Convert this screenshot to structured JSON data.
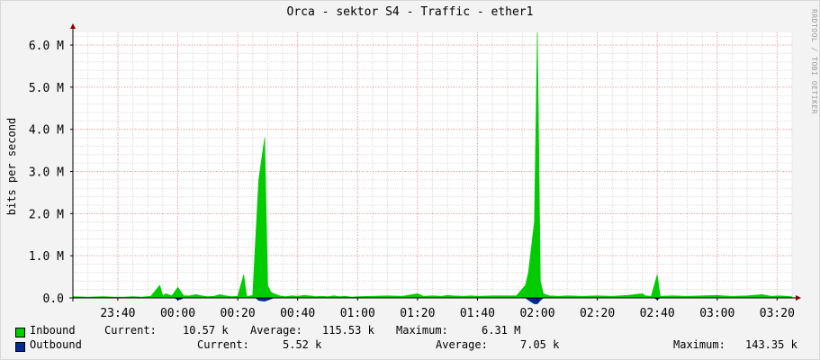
{
  "title": "Orca - sektor S4 - Traffic - ether1",
  "watermark": "RRDTOOL / TOBI OETIKER",
  "chart_data": {
    "type": "area",
    "ylabel": "bits per second",
    "ylim": [
      0,
      6.3
    ],
    "yticks": [
      0.0,
      1.0,
      2.0,
      3.0,
      4.0,
      5.0,
      6.0
    ],
    "ytick_labels": [
      "0.0",
      "1.0 M",
      "2.0 M",
      "3.0 M",
      "4.0 M",
      "5.0 M",
      "6.0 M"
    ],
    "xtick_labels": [
      "23:40",
      "00:00",
      "00:20",
      "00:40",
      "01:00",
      "01:20",
      "01:40",
      "02:00",
      "02:20",
      "02:40",
      "03:00",
      "03:20"
    ],
    "xtick_minutes": [
      1420,
      1440,
      1460,
      1480,
      1500,
      1520,
      1540,
      1560,
      1580,
      1600,
      1620,
      1640
    ],
    "x_range_minutes": [
      1405,
      1645
    ],
    "grid": true,
    "series": [
      {
        "name": "Inbound",
        "color": "#00cc00",
        "points": [
          [
            1405,
            0.03
          ],
          [
            1410,
            0.02
          ],
          [
            1415,
            0.03
          ],
          [
            1419,
            0.02
          ],
          [
            1422,
            0.02
          ],
          [
            1425,
            0.03
          ],
          [
            1428,
            0.02
          ],
          [
            1431,
            0.04
          ],
          [
            1434,
            0.3
          ],
          [
            1435,
            0.05
          ],
          [
            1436,
            0.1
          ],
          [
            1438,
            0.05
          ],
          [
            1440,
            0.25
          ],
          [
            1441,
            0.15
          ],
          [
            1442,
            0.05
          ],
          [
            1444,
            0.05
          ],
          [
            1446,
            0.08
          ],
          [
            1448,
            0.05
          ],
          [
            1450,
            0.03
          ],
          [
            1452,
            0.04
          ],
          [
            1454,
            0.08
          ],
          [
            1456,
            0.05
          ],
          [
            1458,
            0.03
          ],
          [
            1460,
            0.04
          ],
          [
            1462,
            0.55
          ],
          [
            1463,
            0.03
          ],
          [
            1465,
            0.06
          ],
          [
            1467,
            2.8
          ],
          [
            1468,
            3.3
          ],
          [
            1469,
            3.8
          ],
          [
            1470,
            0.3
          ],
          [
            1471,
            0.15
          ],
          [
            1472,
            0.1
          ],
          [
            1474,
            0.05
          ],
          [
            1476,
            0.03
          ],
          [
            1478,
            0.05
          ],
          [
            1480,
            0.04
          ],
          [
            1482,
            0.06
          ],
          [
            1484,
            0.05
          ],
          [
            1486,
            0.03
          ],
          [
            1488,
            0.04
          ],
          [
            1490,
            0.03
          ],
          [
            1492,
            0.05
          ],
          [
            1494,
            0.03
          ],
          [
            1496,
            0.04
          ],
          [
            1498,
            0.02
          ],
          [
            1500,
            0.03
          ],
          [
            1505,
            0.04
          ],
          [
            1510,
            0.05
          ],
          [
            1515,
            0.04
          ],
          [
            1520,
            0.1
          ],
          [
            1522,
            0.04
          ],
          [
            1525,
            0.05
          ],
          [
            1528,
            0.04
          ],
          [
            1530,
            0.06
          ],
          [
            1532,
            0.05
          ],
          [
            1535,
            0.04
          ],
          [
            1538,
            0.05
          ],
          [
            1540,
            0.04
          ],
          [
            1545,
            0.05
          ],
          [
            1550,
            0.05
          ],
          [
            1553,
            0.05
          ],
          [
            1556,
            0.3
          ],
          [
            1557,
            0.6
          ],
          [
            1558,
            1.2
          ],
          [
            1559,
            1.8
          ],
          [
            1560,
            6.3
          ],
          [
            1561,
            0.4
          ],
          [
            1562,
            0.1
          ],
          [
            1564,
            0.05
          ],
          [
            1567,
            0.04
          ],
          [
            1570,
            0.05
          ],
          [
            1575,
            0.04
          ],
          [
            1580,
            0.05
          ],
          [
            1585,
            0.04
          ],
          [
            1590,
            0.06
          ],
          [
            1595,
            0.1
          ],
          [
            1596,
            0.05
          ],
          [
            1598,
            0.04
          ],
          [
            1600,
            0.55
          ],
          [
            1601,
            0.04
          ],
          [
            1605,
            0.05
          ],
          [
            1610,
            0.04
          ],
          [
            1615,
            0.05
          ],
          [
            1620,
            0.06
          ],
          [
            1622,
            0.05
          ],
          [
            1625,
            0.04
          ],
          [
            1630,
            0.05
          ],
          [
            1635,
            0.08
          ],
          [
            1638,
            0.04
          ],
          [
            1641,
            0.05
          ],
          [
            1645,
            0.03
          ]
        ]
      },
      {
        "name": "Outbound",
        "color": "#002a97",
        "points": [
          [
            1405,
            0.0
          ],
          [
            1439,
            0.0
          ],
          [
            1440,
            -0.05
          ],
          [
            1441,
            -0.03
          ],
          [
            1442,
            0.0
          ],
          [
            1466,
            0.0
          ],
          [
            1467,
            -0.06
          ],
          [
            1469,
            -0.08
          ],
          [
            1471,
            -0.03
          ],
          [
            1472,
            0.0
          ],
          [
            1556,
            0.0
          ],
          [
            1557,
            -0.05
          ],
          [
            1558,
            -0.1
          ],
          [
            1559,
            -0.14
          ],
          [
            1560,
            -0.14
          ],
          [
            1561,
            -0.06
          ],
          [
            1562,
            0.0
          ],
          [
            1599,
            0.0
          ],
          [
            1600,
            -0.04
          ],
          [
            1601,
            0.0
          ],
          [
            1645,
            0.0
          ]
        ]
      }
    ]
  },
  "legend": [
    {
      "name": "Inbound",
      "current_label": "Current:",
      "current": "10.57 k",
      "average_label": "Average:",
      "average": "115.53 k",
      "maximum_label": "Maximum:",
      "maximum": "6.31 M"
    },
    {
      "name": "Outbound",
      "current_label": "Current:",
      "current": "5.52 k",
      "average_label": "Average:",
      "average": "7.05 k",
      "maximum_label": "Maximum:",
      "maximum": "143.35 k"
    }
  ]
}
